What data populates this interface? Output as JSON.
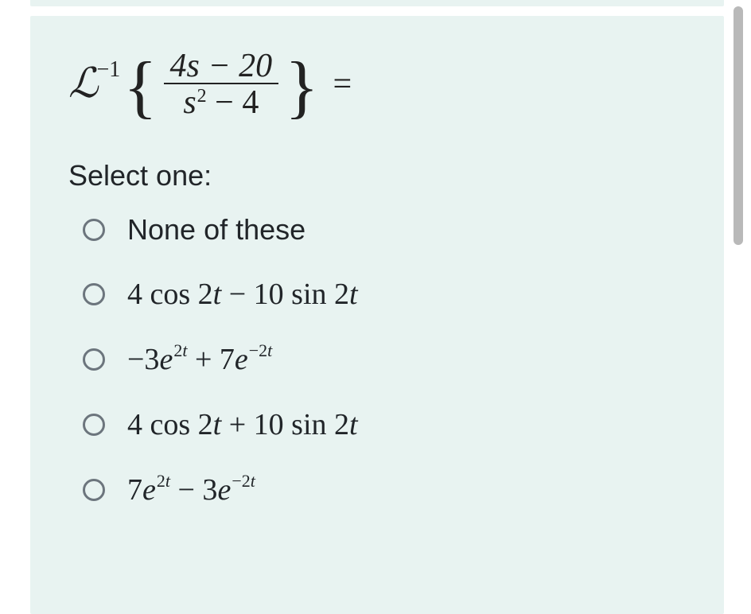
{
  "colors": {
    "panel_bg": "#e8f3f1",
    "page_bg": "#ffffff",
    "text": "#212529",
    "radio_border": "#6c757d",
    "divider": "#222222",
    "scrollbar_thumb": "#b9b9b9"
  },
  "equation": {
    "operator_symbol": "ℒ",
    "operator_exponent": "−1",
    "numerator": "4s − 20",
    "denominator_left": "s",
    "denominator_exp": "2",
    "denominator_right": " − 4",
    "equals": "="
  },
  "prompt": "Select one:",
  "options": [
    {
      "id": "none",
      "html": "None of these"
    },
    {
      "id": "opt1",
      "html": "4 cos 2<span class=\"it\">t</span> − 10 sin 2<span class=\"it\">t</span>"
    },
    {
      "id": "opt2",
      "html": "−3<span class=\"it\">e</span><span class=\"expn\">2<span class=\"it\">t</span></span> + 7<span class=\"it\">e</span><span class=\"expn\">−2<span class=\"it\">t</span></span>"
    },
    {
      "id": "opt3",
      "html": "4 cos 2<span class=\"it\">t</span> + 10 sin 2<span class=\"it\">t</span>"
    },
    {
      "id": "opt4",
      "html": "7<span class=\"it\">e</span><span class=\"expn\">2<span class=\"it\">t</span></span> − 3<span class=\"it\">e</span><span class=\"expn\">−2<span class=\"it\">t</span></span>"
    }
  ]
}
